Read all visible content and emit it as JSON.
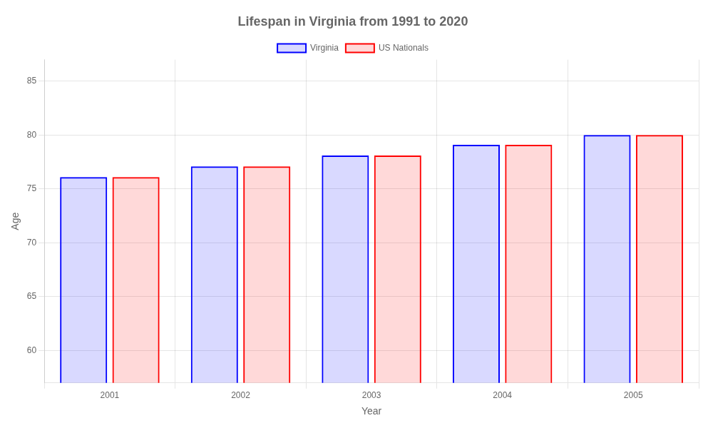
{
  "chart_data": {
    "type": "bar",
    "title": "Lifespan in Virginia from 1991 to 2020",
    "x_label": "Year",
    "y_label": "Age",
    "categories": [
      "2001",
      "2002",
      "2003",
      "2004",
      "2005"
    ],
    "series": [
      {
        "name": "Virginia",
        "color": "#0000ff",
        "values": [
          76.1,
          77.1,
          78.1,
          79.1,
          80.0
        ]
      },
      {
        "name": "US Nationals",
        "color": "#ff0000",
        "values": [
          76.1,
          77.1,
          78.1,
          79.1,
          80.0
        ]
      }
    ],
    "ylim": [
      57,
      87
    ],
    "yticks": [
      60,
      65,
      70,
      75,
      80,
      85
    ],
    "grid": true,
    "legend": "top"
  }
}
